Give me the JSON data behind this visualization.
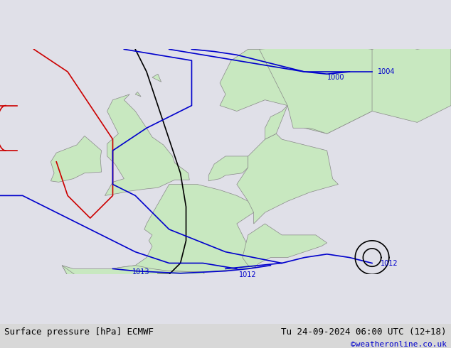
{
  "title_left": "Surface pressure [hPa] ECMWF",
  "title_right": "Tu 24-09-2024 06:00 UTC (12+18)",
  "copyright": "©weatheronline.co.uk",
  "bg_ocean": "#e8e8ee",
  "bg_land": "#c8e8c0",
  "border_color": "#888888",
  "isobar_color_blue": "#0000cc",
  "isobar_color_black": "#000000",
  "isobar_color_red": "#cc0000",
  "label_color": "#0000cc",
  "text_color_left": "#000000",
  "text_color_right": "#000000",
  "copyright_color": "#0000cc",
  "font_size_labels": 8,
  "font_size_title": 9,
  "font_size_copyright": 8,
  "figsize": [
    6.34,
    4.9
  ],
  "dpi": 100
}
